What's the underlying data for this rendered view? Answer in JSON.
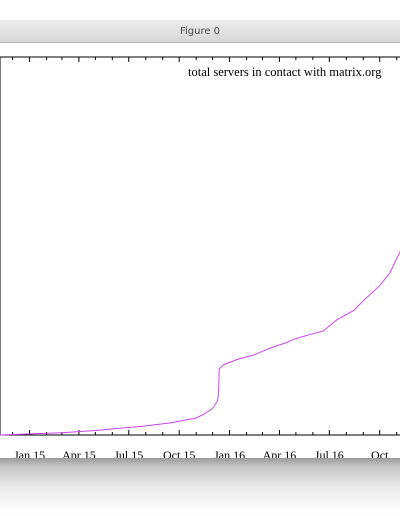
{
  "window": {
    "title": "Figure 0"
  },
  "chart_data": {
    "type": "line",
    "title": "total servers in contact with matrix.org",
    "xlabel": "",
    "ylabel": "",
    "x_axis_type": "date",
    "x_tick_labels": [
      "Jan 15",
      "Apr 15",
      "Jul 15",
      "Oct 15",
      "Jan 16",
      "Apr 16",
      "Jul 16",
      "Oct"
    ],
    "x_ticks": [
      "2015-01-01",
      "2015-04-01",
      "2015-07-01",
      "2015-10-01",
      "2016-01-01",
      "2016-04-01",
      "2016-07-01",
      "2016-10-01"
    ],
    "xlim": [
      "2014-11-08",
      "2016-11-07"
    ],
    "ylim": [
      0,
      1000
    ],
    "y_tick_labels_visible": false,
    "grid": false,
    "legend": "none",
    "series": [
      {
        "color": "#cc44ee",
        "x": [
          "2014-11-08",
          "2015-01-01",
          "2015-03-01",
          "2015-05-01",
          "2015-06-15",
          "2015-08-01",
          "2015-09-15",
          "2015-11-01",
          "2015-11-15",
          "2015-12-01",
          "2015-12-10",
          "2015-12-12",
          "2015-12-13",
          "2015-12-20",
          "2016-01-15",
          "2016-02-15",
          "2016-03-15",
          "2016-04-15",
          "2016-05-01",
          "2016-06-01",
          "2016-06-20",
          "2016-07-15",
          "2016-08-15",
          "2016-09-01",
          "2016-10-01",
          "2016-10-20",
          "2016-11-07"
        ],
        "y": [
          0,
          3,
          6,
          12,
          18,
          24,
          32,
          45,
          55,
          70,
          90,
          110,
          175,
          185,
          200,
          212,
          230,
          245,
          255,
          268,
          275,
          305,
          330,
          355,
          395,
          430,
          485
        ]
      }
    ]
  }
}
